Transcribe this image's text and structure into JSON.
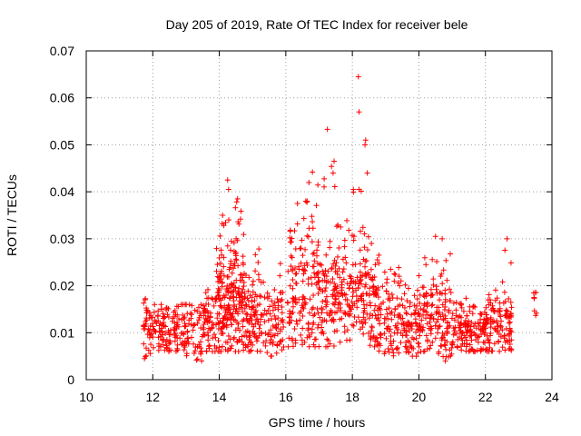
{
  "chart_data": {
    "type": "scatter",
    "title": "Day 205 of 2019, Rate Of TEC Index for receiver bele",
    "xlabel": "GPS time / hours",
    "ylabel": "ROTI / TECUs",
    "xlim": [
      10,
      24
    ],
    "ylim": [
      0,
      0.07
    ],
    "xticks": [
      10,
      12,
      14,
      16,
      18,
      20,
      22,
      24
    ],
    "xtick_labels": [
      "10",
      "12",
      "14",
      "16",
      "18",
      "20",
      "22",
      "24"
    ],
    "yticks": [
      0,
      0.01,
      0.02,
      0.03,
      0.04,
      0.05,
      0.06,
      0.07
    ],
    "ytick_labels": [
      "0",
      "0.01",
      "0.02",
      "0.03",
      "0.04",
      "0.05",
      "0.06",
      "0.07"
    ],
    "grid": true,
    "marker": "+",
    "color": "#ff0000",
    "bands": [
      {
        "x0": 11.72,
        "x1": 11.95,
        "ymin": 0.004,
        "ymax": 0.021,
        "mean": 0.0115,
        "n": 35
      },
      {
        "x0": 11.95,
        "x1": 12.5,
        "ymin": 0.006,
        "ymax": 0.016,
        "mean": 0.0112,
        "n": 70
      },
      {
        "x0": 12.5,
        "x1": 13.0,
        "ymin": 0.006,
        "ymax": 0.016,
        "mean": 0.0115,
        "n": 60
      },
      {
        "x0": 13.0,
        "x1": 13.5,
        "ymin": 0.004,
        "ymax": 0.016,
        "mean": 0.0105,
        "n": 50
      },
      {
        "x0": 13.5,
        "x1": 13.9,
        "ymin": 0.006,
        "ymax": 0.02,
        "mean": 0.0125,
        "n": 60
      },
      {
        "x0": 13.9,
        "x1": 14.3,
        "ymin": 0.006,
        "ymax": 0.035,
        "mean": 0.0165,
        "n": 110
      },
      {
        "x0": 14.3,
        "x1": 14.75,
        "ymin": 0.006,
        "ymax": 0.038,
        "mean": 0.0175,
        "n": 120
      },
      {
        "x0": 14.75,
        "x1": 15.25,
        "ymin": 0.006,
        "ymax": 0.028,
        "mean": 0.0135,
        "n": 90
      },
      {
        "x0": 15.25,
        "x1": 15.95,
        "ymin": 0.005,
        "ymax": 0.026,
        "mean": 0.0125,
        "n": 80
      },
      {
        "x0": 16.05,
        "x1": 16.55,
        "ymin": 0.007,
        "ymax": 0.037,
        "mean": 0.0175,
        "n": 80
      },
      {
        "x0": 16.55,
        "x1": 17.05,
        "ymin": 0.007,
        "ymax": 0.044,
        "mean": 0.0175,
        "n": 80
      },
      {
        "x0": 17.05,
        "x1": 17.5,
        "ymin": 0.007,
        "ymax": 0.047,
        "mean": 0.0175,
        "n": 80
      },
      {
        "x0": 17.5,
        "x1": 18.0,
        "ymin": 0.008,
        "ymax": 0.034,
        "mean": 0.017,
        "n": 80
      },
      {
        "x0": 18.0,
        "x1": 18.5,
        "ymin": 0.008,
        "ymax": 0.045,
        "mean": 0.018,
        "n": 80
      },
      {
        "x0": 18.5,
        "x1": 18.8,
        "ymin": 0.007,
        "ymax": 0.03,
        "mean": 0.0165,
        "n": 60
      },
      {
        "x0": 18.8,
        "x1": 19.5,
        "ymin": 0.005,
        "ymax": 0.024,
        "mean": 0.0125,
        "n": 90
      },
      {
        "x0": 19.5,
        "x1": 20.0,
        "ymin": 0.005,
        "ymax": 0.021,
        "mean": 0.012,
        "n": 70
      },
      {
        "x0": 20.0,
        "x1": 20.55,
        "ymin": 0.006,
        "ymax": 0.027,
        "mean": 0.0135,
        "n": 80
      },
      {
        "x0": 20.55,
        "x1": 21.0,
        "ymin": 0.004,
        "ymax": 0.03,
        "mean": 0.0125,
        "n": 70
      },
      {
        "x0": 21.0,
        "x1": 21.55,
        "ymin": 0.006,
        "ymax": 0.018,
        "mean": 0.011,
        "n": 80
      },
      {
        "x0": 21.55,
        "x1": 22.05,
        "ymin": 0.006,
        "ymax": 0.016,
        "mean": 0.0105,
        "n": 70
      },
      {
        "x0": 22.05,
        "x1": 22.5,
        "ymin": 0.006,
        "ymax": 0.021,
        "mean": 0.0115,
        "n": 60
      },
      {
        "x0": 22.5,
        "x1": 22.8,
        "ymin": 0.006,
        "ymax": 0.028,
        "mean": 0.012,
        "n": 50
      },
      {
        "x0": 23.45,
        "x1": 23.55,
        "ymin": 0.013,
        "ymax": 0.021,
        "mean": 0.016,
        "n": 8
      }
    ],
    "highlights": [
      {
        "x": 18.18,
        "y": 0.0645
      },
      {
        "x": 18.2,
        "y": 0.057
      },
      {
        "x": 17.25,
        "y": 0.0533
      },
      {
        "x": 18.4,
        "y": 0.051
      },
      {
        "x": 18.38,
        "y": 0.05
      },
      {
        "x": 17.45,
        "y": 0.0465
      },
      {
        "x": 17.42,
        "y": 0.044
      },
      {
        "x": 16.8,
        "y": 0.0442
      },
      {
        "x": 18.45,
        "y": 0.044
      },
      {
        "x": 18.2,
        "y": 0.0405
      },
      {
        "x": 14.25,
        "y": 0.0425
      },
      {
        "x": 14.28,
        "y": 0.0405
      },
      {
        "x": 14.55,
        "y": 0.0385
      },
      {
        "x": 16.35,
        "y": 0.0375
      },
      {
        "x": 16.6,
        "y": 0.038
      },
      {
        "x": 14.1,
        "y": 0.035
      },
      {
        "x": 20.5,
        "y": 0.0305
      },
      {
        "x": 20.7,
        "y": 0.03
      },
      {
        "x": 22.65,
        "y": 0.03
      },
      {
        "x": 19.15,
        "y": 0.0235
      },
      {
        "x": 11.75,
        "y": 0.0045
      }
    ]
  }
}
